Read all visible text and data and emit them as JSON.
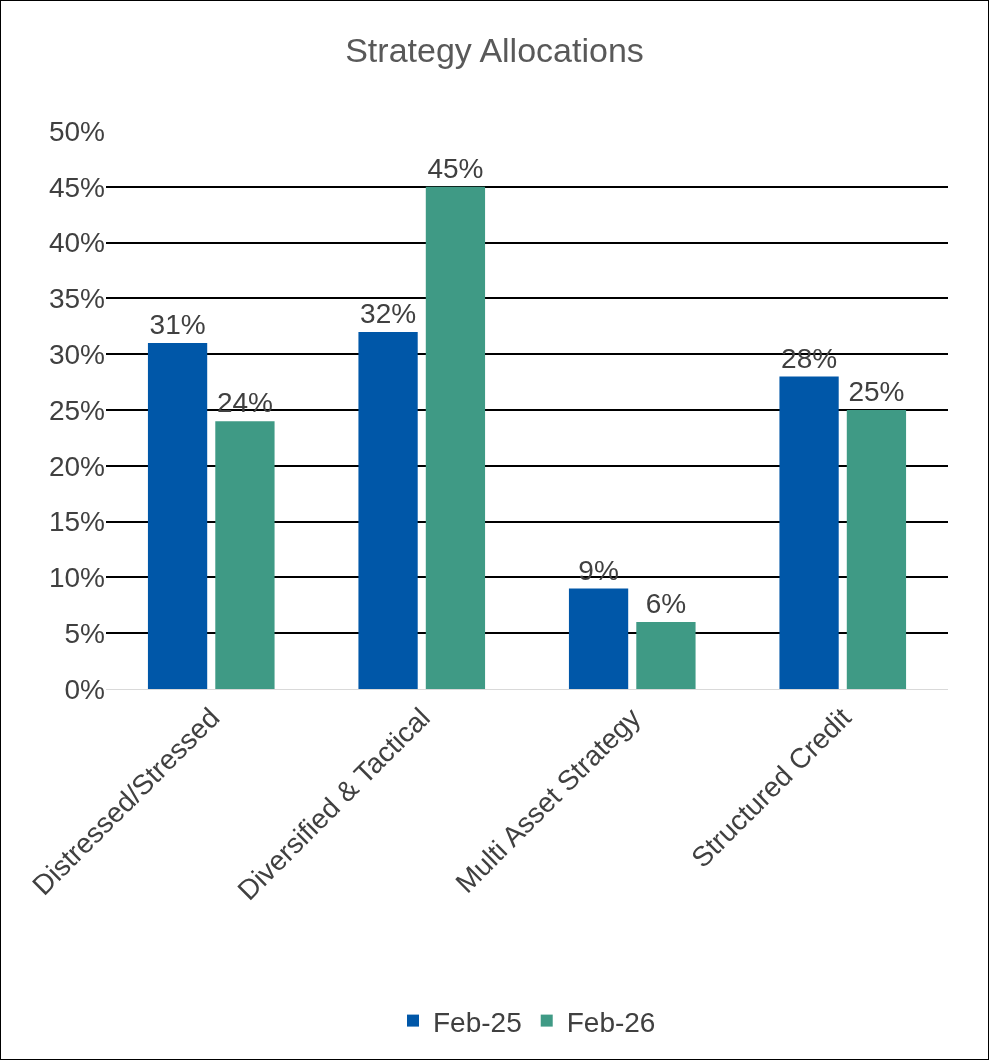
{
  "chart_data": {
    "type": "bar",
    "title": "Strategy Allocations",
    "categories": [
      "Distressed/Stressed",
      "Diversified & Tactical",
      "Multi Asset Strategy",
      "Structured Credit"
    ],
    "series": [
      {
        "name": "Feb-25",
        "color": "#0057a8",
        "values": [
          31,
          32,
          9,
          28
        ],
        "value_labels": [
          "31%",
          "32%",
          "9%",
          "28%"
        ]
      },
      {
        "name": "Feb-26",
        "color": "#3f9a85",
        "values": [
          24,
          45,
          6,
          25
        ],
        "value_labels": [
          "24%",
          "45%",
          "6%",
          "25%"
        ]
      }
    ],
    "ylim": [
      0,
      50
    ],
    "yticks": [
      {
        "value": 0,
        "label": "0%"
      },
      {
        "value": 5,
        "label": "5%"
      },
      {
        "value": 10,
        "label": "10%"
      },
      {
        "value": 15,
        "label": "15%"
      },
      {
        "value": 20,
        "label": "20%"
      },
      {
        "value": 25,
        "label": "25%"
      },
      {
        "value": 30,
        "label": "30%"
      },
      {
        "value": 35,
        "label": "35%"
      },
      {
        "value": 40,
        "label": "40%"
      },
      {
        "value": 45,
        "label": "45%"
      },
      {
        "value": 50,
        "label": "50%"
      }
    ],
    "grid": "y",
    "legend": "bottom"
  }
}
